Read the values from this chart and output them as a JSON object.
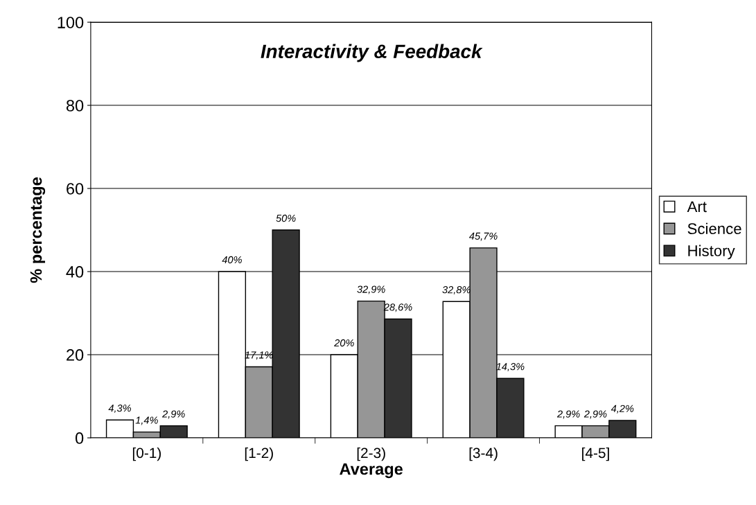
{
  "chart_data": {
    "type": "bar",
    "title": "Interactivity & Feedback",
    "xlabel": "Average",
    "ylabel": "% percentage",
    "categories": [
      "[0-1)",
      "[1-2)",
      "[2-3)",
      "[3-4)",
      "[4-5]"
    ],
    "series": [
      {
        "name": "Art",
        "color": "#ffffff",
        "values": [
          4.3,
          40,
          20,
          32.8,
          2.9
        ],
        "value_labels": [
          "4,3%",
          "40%",
          "20%",
          "32,8%",
          "2,9%"
        ]
      },
      {
        "name": "Science",
        "color": "#969696",
        "values": [
          1.4,
          17.1,
          32.9,
          45.7,
          2.9
        ],
        "value_labels": [
          "1,4%",
          "17,1%",
          "32,9%",
          "45,7%",
          "2,9%"
        ]
      },
      {
        "name": "History",
        "color": "#333333",
        "values": [
          2.9,
          50,
          28.6,
          14.3,
          4.2
        ],
        "value_labels": [
          "2,9%",
          "50%",
          "28,6%",
          "14,3%",
          "4,2%"
        ]
      }
    ],
    "ylim": [
      0,
      100
    ],
    "yticks": [
      0,
      20,
      40,
      60,
      80,
      100
    ],
    "grid": "y",
    "legend": "right"
  }
}
